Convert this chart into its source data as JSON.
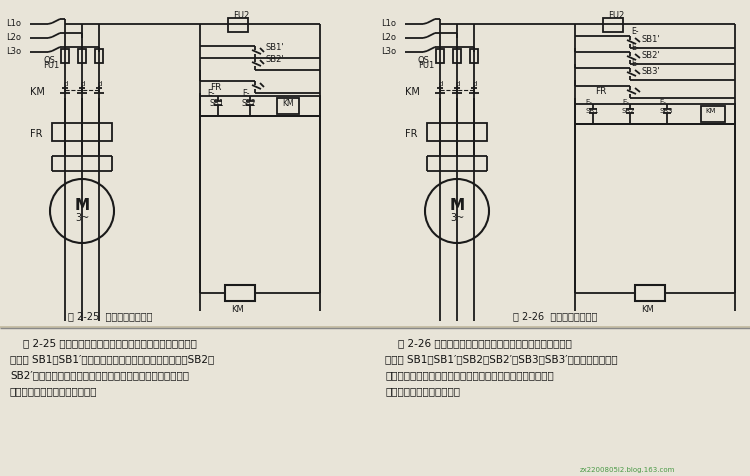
{
  "bg_color": "#c8c0a8",
  "panel_color": "#e8e4d8",
  "line_color": "#1a1a1a",
  "fig_title_left": "图 2-25  两地操作控制线路",
  "fig_title_right": "图 2-26  多地操作控制线路",
  "desc_left_line1": "    图 2-25 所示为同一台电动机在两地进行控制的线路。图中",
  "desc_left_line2": "的按钮 SB1、SB1′为安装在甲地的起动按钮和停止按钮；SB2、",
  "desc_left_line3": "SB2′为安装在乙地的起动按钮和停止按钮。这样就可以分别在",
  "desc_left_line4": "甲、乙两地起停同一台电动机。",
  "desc_right_line1": "    图 2-26 所示为同一台电动机在三地操作的多地控制线路。",
  "desc_right_line2": "图中的 SB1、SB1′，SB2、SB2′，SB3、SB3′三套起动、停止按",
  "desc_right_line3": "钮可分别安装在三处地方。在任一地点均可对同一台电动机方",
  "desc_right_line4": "便地进行起、停操作控制。",
  "watermark": "zx2200805i2.blog.163.com"
}
